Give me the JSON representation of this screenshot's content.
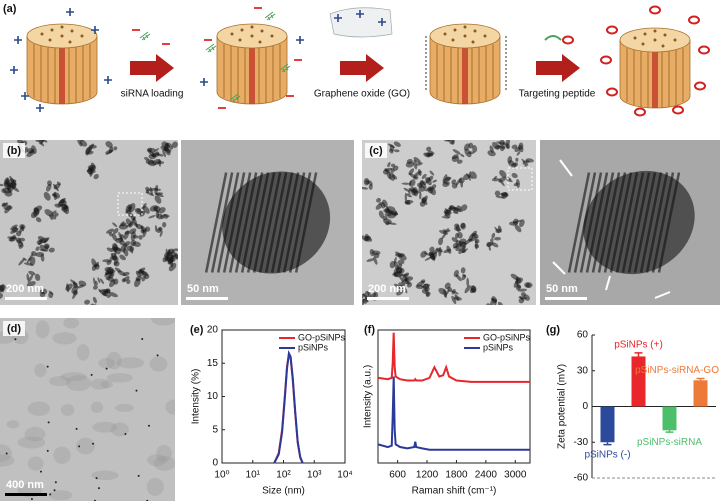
{
  "panel_a": {
    "label": "(a)",
    "steps": [
      "siRNA loading",
      "Graphene oxide (GO)",
      "Targeting peptide"
    ]
  },
  "micrographs": [
    {
      "panel": "(b)",
      "scale": "200 nm"
    },
    {
      "scale": "50 nm"
    },
    {
      "panel": "(c)",
      "scale": "200 nm"
    },
    {
      "scale": "50 nm"
    },
    {
      "panel": "(d)",
      "scale": "400 nm"
    }
  ],
  "chart_data": [
    {
      "type": "line",
      "panel_label": "(e)",
      "x_label": "Size (nm)",
      "y_label": "Intensity (%)",
      "xlog": true,
      "xlim": [
        1,
        10000
      ],
      "xticks": [
        {
          "value": 1,
          "label": "10⁰"
        },
        {
          "value": 10,
          "label": "10¹"
        },
        {
          "value": 100,
          "label": "10²"
        },
        {
          "value": 1000,
          "label": "10³"
        },
        {
          "value": 10000,
          "label": "10⁴"
        }
      ],
      "ylim": [
        0,
        20
      ],
      "yticks": [
        0,
        5,
        10,
        15,
        20
      ],
      "legend": "top-right",
      "x": [
        50,
        70,
        90,
        110,
        130,
        150,
        170,
        200,
        240,
        290,
        350,
        420
      ],
      "series": [
        {
          "name": "GO-pSiNPs",
          "color": "#e8262b",
          "values": [
            0,
            1.5,
            5,
            10,
            14.5,
            16.3,
            15.8,
            12.5,
            7.5,
            3,
            0.8,
            0
          ]
        },
        {
          "name": "pSiNPs",
          "color": "#2b3a9a",
          "values": [
            0,
            1.3,
            4.6,
            9.6,
            14.2,
            16.5,
            16.0,
            12.8,
            7.8,
            3.2,
            0.9,
            0
          ]
        }
      ]
    },
    {
      "type": "line",
      "panel_label": "(f)",
      "x_label": "Raman shift (cm⁻¹)",
      "y_label": "Intensity (a.u.)",
      "xlim": [
        200,
        3300
      ],
      "xticks": [
        600,
        1200,
        1800,
        2400,
        3000
      ],
      "ylim": [
        0,
        10
      ],
      "legend": "top-right",
      "x": [
        200,
        400,
        480,
        500,
        520,
        540,
        560,
        650,
        800,
        940,
        960,
        980,
        1100,
        1250,
        1350,
        1450,
        1530,
        1590,
        1650,
        1800,
        2100,
        2400,
        2700,
        3000,
        3300
      ],
      "series": [
        {
          "name": "GO-pSiNPs",
          "color": "#e8262b",
          "values": [
            6.4,
            6.3,
            6.4,
            7.5,
            9.8,
            7.2,
            6.5,
            6.3,
            6.2,
            6.2,
            6.3,
            6.2,
            6.2,
            6.4,
            7.2,
            6.5,
            6.6,
            7.2,
            6.5,
            6.2,
            6.1,
            6.1,
            6.1,
            6.1,
            6.1
          ]
        },
        {
          "name": "pSiNPs",
          "color": "#2b3a9a",
          "values": [
            1.4,
            1.2,
            1.3,
            3.5,
            6.5,
            2.5,
            1.4,
            1.2,
            1.1,
            1.2,
            1.6,
            1.2,
            1.1,
            1.0,
            1.0,
            1.0,
            1.0,
            1.0,
            1.0,
            1.0,
            1.0,
            1.0,
            1.0,
            1.0,
            1.0
          ]
        }
      ]
    },
    {
      "type": "bar",
      "panel_label": "(g)",
      "y_label": "Zeta potential (mV)",
      "categories": [
        "pSiNPs (-)",
        "pSiNPs (+)",
        "pSiNPs-siRNA",
        "pSiNPs-siRNA-GO"
      ],
      "values": [
        -30,
        42,
        -20,
        22
      ],
      "errors": [
        2,
        3,
        1.5,
        1.5
      ],
      "colors": [
        "#2b4a9a",
        "#e8262b",
        "#4cbf6a",
        "#ee7a3a"
      ],
      "ylim": [
        -60,
        60
      ],
      "yticks": [
        -60,
        -30,
        0,
        30,
        60
      ]
    }
  ]
}
